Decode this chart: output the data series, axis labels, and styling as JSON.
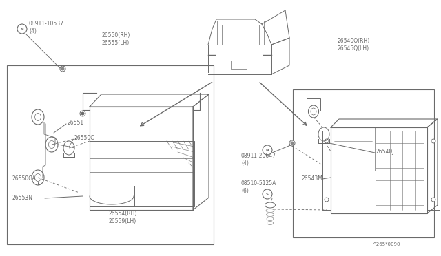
{
  "bg_color": "#f0ede8",
  "line_color": "#6a6a6a",
  "text_color": "#6a6a6a",
  "figsize": [
    6.4,
    3.72
  ],
  "dpi": 100,
  "xlim": [
    0,
    640
  ],
  "ylim": [
    0,
    372
  ],
  "labels": {
    "nut1_sym": "N",
    "nut1_txt": "08911-10537\n(4)",
    "lbl_26550": "26550(RH)\n26555(LH)",
    "lbl_26551": "26551",
    "lbl_26550C": "26550C",
    "lbl_26550CA": "26550CA",
    "lbl_26553N": "26553N",
    "lbl_26554": "26554(RH)\n26559(LH)",
    "lbl_26540Q": "26540Q(RH)\n26545Q(LH)",
    "nut2_sym": "N",
    "nut2_txt": "08911-20647\n(4)",
    "screw_sym": "S",
    "screw_txt": "08510-5125A\n(6)",
    "lbl_26540J": "26540J",
    "lbl_26543M": "26543M",
    "ref": "^265*0090"
  }
}
